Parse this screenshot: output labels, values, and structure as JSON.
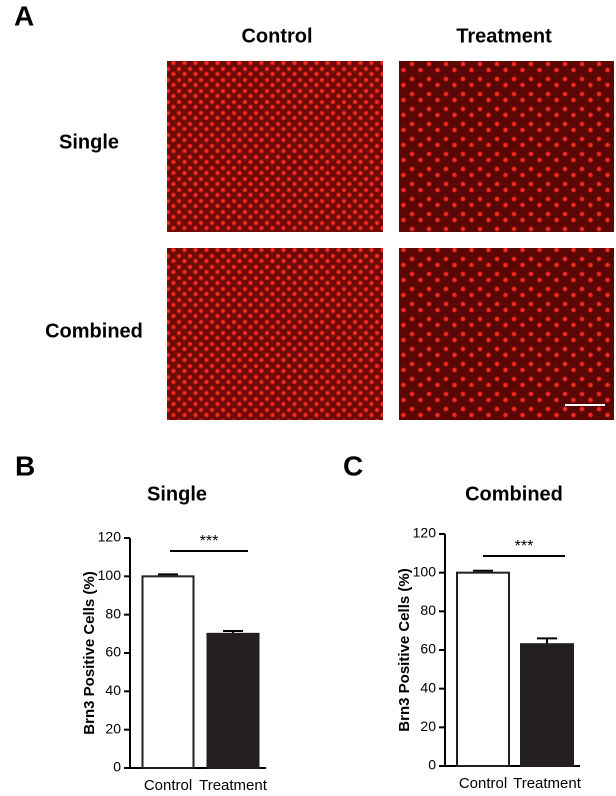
{
  "panels": {
    "a": "A",
    "b": "B",
    "c": "C"
  },
  "panel_a": {
    "columns": [
      "Control",
      "Treatment"
    ],
    "rows": [
      "Single",
      "Combined"
    ]
  },
  "chart_data": [
    {
      "type": "bar",
      "title": "Single",
      "y_label": "Brn3 Positive Cells (%)",
      "categories": [
        "Control",
        "Treatment"
      ],
      "values": [
        100,
        70
      ],
      "errors": [
        1,
        1.5
      ],
      "colors": [
        "#ffffff",
        "#231f20"
      ],
      "ylim": [
        0,
        120
      ],
      "yticks": [
        0,
        20,
        40,
        60,
        80,
        100,
        120
      ],
      "annotation": "***"
    },
    {
      "type": "bar",
      "title": "Combined",
      "y_label": "Brn3 Positive Cells (%)",
      "categories": [
        "Control",
        "Treatment"
      ],
      "values": [
        100,
        63
      ],
      "errors": [
        1,
        3
      ],
      "colors": [
        "#ffffff",
        "#231f20"
      ],
      "ylim": [
        0,
        120
      ],
      "yticks": [
        0,
        20,
        40,
        60,
        80,
        100,
        120
      ],
      "annotation": "***"
    }
  ]
}
